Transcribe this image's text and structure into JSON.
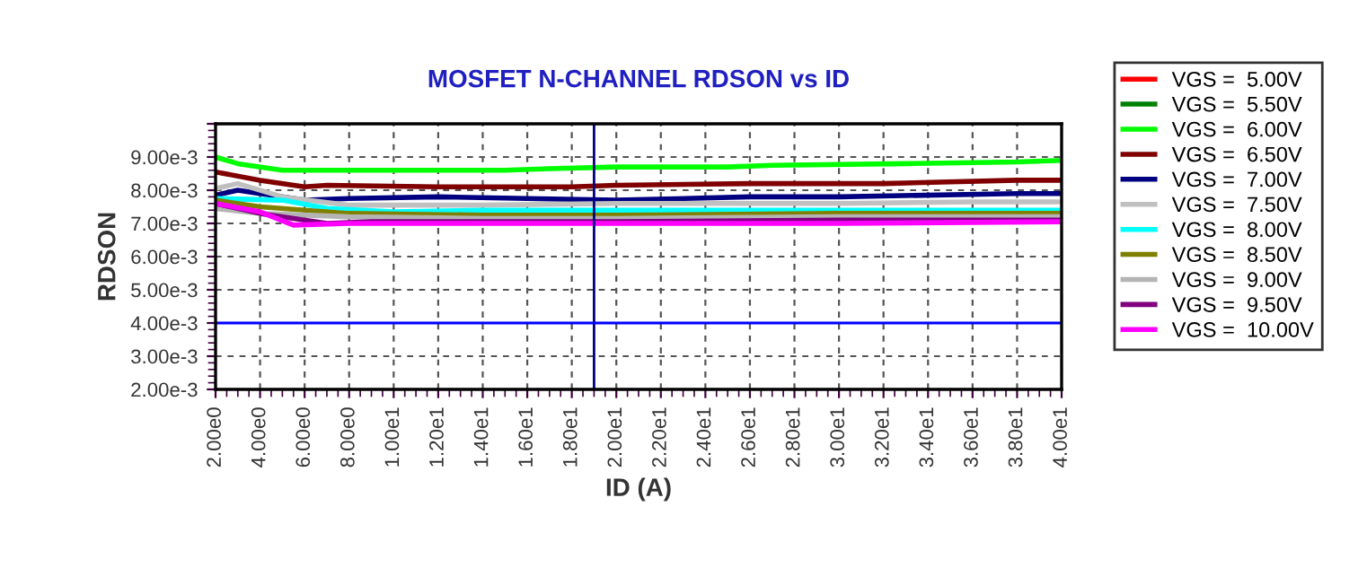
{
  "chart_data": {
    "type": "line",
    "title": "MOSFET N-CHANNEL RDSON vs ID",
    "xlabel": "ID (A)",
    "ylabel": "RDSON",
    "xlim": [
      2,
      40
    ],
    "xticks": [
      {
        "value": 2,
        "label": "2.00e0"
      },
      {
        "value": 4,
        "label": "4.00e0"
      },
      {
        "value": 6,
        "label": "6.00e0"
      },
      {
        "value": 8,
        "label": "8.00e0"
      },
      {
        "value": 10,
        "label": "1.00e1"
      },
      {
        "value": 12,
        "label": "1.20e1"
      },
      {
        "value": 14,
        "label": "1.40e1"
      },
      {
        "value": 16,
        "label": "1.60e1"
      },
      {
        "value": 18,
        "label": "1.80e1"
      },
      {
        "value": 20,
        "label": "2.00e1"
      },
      {
        "value": 22,
        "label": "2.20e1"
      },
      {
        "value": 24,
        "label": "2.40e1"
      },
      {
        "value": 26,
        "label": "2.60e1"
      },
      {
        "value": 28,
        "label": "2.80e1"
      },
      {
        "value": 30,
        "label": "3.00e1"
      },
      {
        "value": 32,
        "label": "3.20e1"
      },
      {
        "value": 34,
        "label": "3.40e1"
      },
      {
        "value": 36,
        "label": "3.60e1"
      },
      {
        "value": 38,
        "label": "3.80e1"
      },
      {
        "value": 40,
        "label": "4.00e1"
      }
    ],
    "ylim": [
      0.002,
      0.01
    ],
    "yticks": [
      {
        "value": 0.002,
        "label": "2.00e-3"
      },
      {
        "value": 0.003,
        "label": "3.00e-3"
      },
      {
        "value": 0.004,
        "label": "4.00e-3"
      },
      {
        "value": 0.005,
        "label": "5.00e-3"
      },
      {
        "value": 0.006,
        "label": "6.00e-3"
      },
      {
        "value": 0.007,
        "label": "7.00e-3"
      },
      {
        "value": 0.008,
        "label": "8.00e-3"
      },
      {
        "value": 0.009,
        "label": "9.00e-3"
      },
      {
        "value": 0.01,
        "label": null
      }
    ],
    "grid": true,
    "legend": "top right",
    "marker": "none",
    "line_style": "solid",
    "ref_lines": [
      {
        "axis": "x",
        "value": 19,
        "color": "#000080"
      },
      {
        "axis": "y",
        "value": 0.004,
        "color": "#0000ff"
      }
    ],
    "series": [
      {
        "name": "VGS =  5.00V",
        "color": "#ff0000"
      },
      {
        "name": "VGS =  5.50V",
        "color": "#008000"
      },
      {
        "name": "VGS =  6.00V",
        "color": "#00ff00",
        "x": [
          2,
          3,
          5,
          10,
          15,
          17,
          20,
          25,
          27,
          33,
          38,
          40
        ],
        "values": [
          0.009,
          0.0088,
          0.0086,
          0.0086,
          0.0086,
          0.00865,
          0.0087,
          0.0087,
          0.00875,
          0.0088,
          0.00885,
          0.0089
        ]
      },
      {
        "name": "VGS =  6.50V",
        "color": "#800000",
        "x": [
          2,
          4,
          6,
          7,
          12,
          18,
          20,
          26,
          32,
          38,
          40
        ],
        "values": [
          0.00855,
          0.0083,
          0.0081,
          0.00815,
          0.0081,
          0.0081,
          0.00815,
          0.0082,
          0.0082,
          0.0083,
          0.0083
        ]
      },
      {
        "name": "VGS =  7.00V",
        "color": "#000080",
        "x": [
          2,
          3,
          4,
          6,
          8,
          12,
          16,
          20,
          26,
          30,
          38,
          40
        ],
        "values": [
          0.00785,
          0.008,
          0.0079,
          0.0077,
          0.00775,
          0.0078,
          0.00775,
          0.0077,
          0.0078,
          0.0078,
          0.0079,
          0.0079
        ]
      },
      {
        "name": "VGS =  7.50V",
        "color": "#c0c0c0",
        "x": [
          2,
          3,
          5,
          8,
          14,
          20,
          30,
          36,
          40
        ],
        "values": [
          0.00805,
          0.0082,
          0.0078,
          0.00755,
          0.00755,
          0.0076,
          0.0076,
          0.00765,
          0.00765
        ]
      },
      {
        "name": "VGS =  8.00V",
        "color": "#00ffff",
        "x": [
          2,
          5,
          7,
          10,
          14,
          20,
          30,
          40
        ],
        "values": [
          0.00775,
          0.0077,
          0.00745,
          0.00735,
          0.0074,
          0.0074,
          0.0074,
          0.0074
        ]
      },
      {
        "name": "VGS =  8.50V",
        "color": "#808000",
        "x": [
          2,
          4,
          8,
          14,
          20,
          30,
          40
        ],
        "values": [
          0.0077,
          0.0075,
          0.0073,
          0.00725,
          0.00725,
          0.0073,
          0.0073
        ]
      },
      {
        "name": "VGS =  9.00V",
        "color": "#b4b4b4",
        "x": [
          2,
          4,
          8,
          14,
          20,
          30,
          40
        ],
        "values": [
          0.00745,
          0.0073,
          0.0072,
          0.00715,
          0.00715,
          0.0072,
          0.0072
        ]
      },
      {
        "name": "VGS =  9.50V",
        "color": "#800080",
        "x": [
          2,
          4,
          7,
          9,
          20,
          30,
          40
        ],
        "values": [
          0.0076,
          0.0073,
          0.007,
          0.00705,
          0.00705,
          0.0071,
          0.0071
        ]
      },
      {
        "name": "VGS =  10.00V",
        "color": "#ff00ff",
        "x": [
          2,
          4,
          5.5,
          8,
          20,
          30,
          40
        ],
        "values": [
          0.0076,
          0.00735,
          0.00695,
          0.007,
          0.007,
          0.007,
          0.00705
        ]
      }
    ]
  }
}
